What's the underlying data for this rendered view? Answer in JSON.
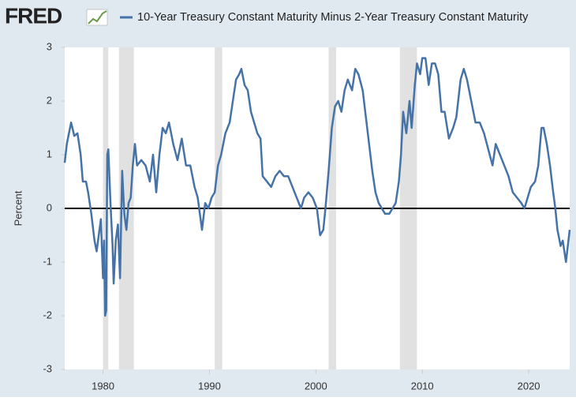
{
  "chart_data": {
    "type": "line",
    "logo": "FRED",
    "ylabel": "Percent",
    "xlim": [
      1976.4,
      2023.85
    ],
    "xticks": [
      1980,
      1990,
      2000,
      2010,
      2020
    ],
    "ylim": [
      -3,
      3
    ],
    "yticks": [
      -3,
      -2,
      -1,
      0,
      1,
      2,
      3
    ],
    "reference_line": 0,
    "recessions": [
      [
        1980.0,
        1980.5
      ],
      [
        1981.5,
        1982.9
      ],
      [
        1990.5,
        1991.2
      ],
      [
        2001.2,
        2001.9
      ],
      [
        2007.9,
        2009.5
      ]
    ],
    "recession_color": "#e1e1e1",
    "x": [
      1976.4,
      1976.6,
      1976.9,
      1977.0,
      1977.3,
      1977.6,
      1977.9,
      1978.1,
      1978.4,
      1978.6,
      1978.9,
      1979.2,
      1979.4,
      1979.6,
      1979.8,
      1980.0,
      1980.1,
      1980.2,
      1980.3,
      1980.4,
      1980.5,
      1980.7,
      1980.9,
      1981.0,
      1981.2,
      1981.4,
      1981.6,
      1981.8,
      1982.0,
      1982.2,
      1982.4,
      1982.6,
      1982.8,
      1983.0,
      1983.2,
      1983.6,
      1984.0,
      1984.4,
      1984.7,
      1985.0,
      1985.3,
      1985.6,
      1985.9,
      1986.2,
      1986.6,
      1987.0,
      1987.4,
      1987.8,
      1988.2,
      1988.6,
      1988.9,
      1989.1,
      1989.3,
      1989.6,
      1989.9,
      1990.2,
      1990.5,
      1990.8,
      1991.1,
      1991.5,
      1991.9,
      1992.2,
      1992.5,
      1992.8,
      1993.0,
      1993.3,
      1993.6,
      1993.9,
      1994.2,
      1994.5,
      1994.8,
      1995.0,
      1995.4,
      1995.8,
      1996.2,
      1996.6,
      1997.0,
      1997.4,
      1997.8,
      1998.2,
      1998.6,
      1998.9,
      1999.3,
      1999.7,
      2000.1,
      2000.4,
      2000.7,
      2000.9,
      2001.2,
      2001.5,
      2001.8,
      2002.1,
      2002.4,
      2002.7,
      2003.0,
      2003.4,
      2003.7,
      2004.0,
      2004.4,
      2004.7,
      2005.0,
      2005.3,
      2005.6,
      2005.9,
      2006.2,
      2006.5,
      2006.9,
      2007.2,
      2007.5,
      2007.8,
      2008.0,
      2008.2,
      2008.5,
      2008.8,
      2009.0,
      2009.3,
      2009.5,
      2009.8,
      2010.0,
      2010.3,
      2010.6,
      2010.9,
      2011.2,
      2011.5,
      2011.8,
      2012.1,
      2012.5,
      2012.9,
      2013.2,
      2013.6,
      2013.9,
      2014.2,
      2014.6,
      2015.0,
      2015.4,
      2015.8,
      2016.2,
      2016.6,
      2016.9,
      2017.3,
      2017.7,
      2018.1,
      2018.5,
      2018.9,
      2019.3,
      2019.6,
      2019.9,
      2020.2,
      2020.6,
      2020.9,
      2021.2,
      2021.4,
      2021.7,
      2022.0,
      2022.3,
      2022.5,
      2022.7,
      2023.0,
      2023.2,
      2023.5,
      2023.85
    ],
    "series": [
      {
        "name": "10-Year Treasury Constant Maturity Minus 2-Year Treasury Constant Maturity",
        "color": "#4572a7",
        "values": [
          0.85,
          1.2,
          1.5,
          1.6,
          1.35,
          1.4,
          1.0,
          0.5,
          0.5,
          0.3,
          -0.1,
          -0.6,
          -0.8,
          -0.5,
          -0.2,
          -1.3,
          -0.6,
          -2.0,
          -1.9,
          1.0,
          1.1,
          0.1,
          -0.7,
          -1.4,
          -0.6,
          -0.3,
          -1.3,
          0.7,
          -0.1,
          -0.4,
          0.1,
          0.2,
          0.8,
          1.2,
          0.8,
          0.9,
          0.8,
          0.5,
          1.0,
          0.3,
          1.0,
          1.5,
          1.4,
          1.6,
          1.2,
          0.9,
          1.3,
          0.8,
          0.8,
          0.4,
          0.2,
          -0.1,
          -0.4,
          0.1,
          0.0,
          0.2,
          0.3,
          0.8,
          1.0,
          1.4,
          1.6,
          2.0,
          2.4,
          2.5,
          2.6,
          2.3,
          2.2,
          1.8,
          1.6,
          1.4,
          1.3,
          0.6,
          0.5,
          0.4,
          0.6,
          0.7,
          0.6,
          0.6,
          0.4,
          0.2,
          0.0,
          0.2,
          0.3,
          0.2,
          0.0,
          -0.5,
          -0.4,
          0.0,
          0.7,
          1.5,
          1.9,
          2.0,
          1.8,
          2.2,
          2.4,
          2.2,
          2.6,
          2.5,
          2.2,
          1.7,
          1.2,
          0.7,
          0.3,
          0.1,
          0.0,
          -0.1,
          -0.1,
          0.0,
          0.1,
          0.5,
          1.0,
          1.8,
          1.4,
          2.0,
          1.5,
          2.3,
          2.7,
          2.5,
          2.8,
          2.8,
          2.3,
          2.7,
          2.7,
          2.5,
          1.8,
          1.8,
          1.3,
          1.5,
          1.7,
          2.4,
          2.6,
          2.4,
          2.0,
          1.6,
          1.6,
          1.4,
          1.1,
          0.8,
          1.2,
          1.0,
          0.8,
          0.6,
          0.3,
          0.2,
          0.1,
          0.0,
          0.2,
          0.4,
          0.5,
          0.8,
          1.5,
          1.5,
          1.2,
          0.8,
          0.3,
          0.0,
          -0.4,
          -0.7,
          -0.6,
          -1.0,
          -0.4
        ]
      }
    ]
  }
}
